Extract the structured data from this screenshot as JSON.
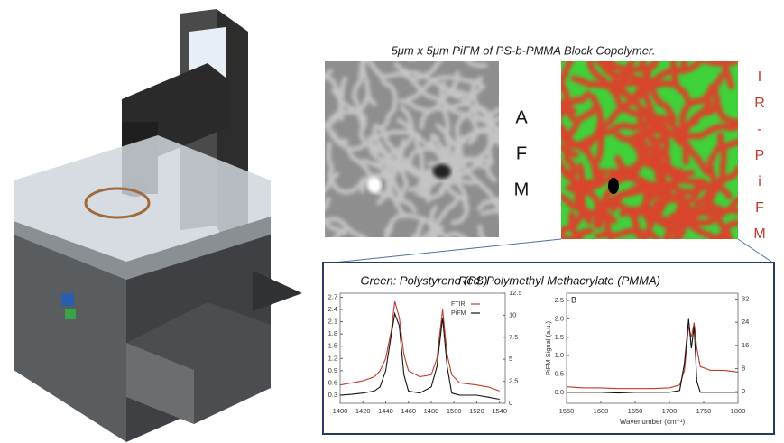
{
  "figure": {
    "title": "5μm x 5μm PiFM of PS-b-PMMA Block Copolymer.",
    "afm_label": [
      "A",
      "F",
      "M"
    ],
    "pifm_label": [
      "I",
      "R",
      "-",
      "P",
      "i",
      "F",
      "M"
    ]
  },
  "chart_data": [
    {
      "type": "line",
      "title": "Green: Polystyrene (PS)",
      "x": [
        1400,
        1410,
        1420,
        1430,
        1435,
        1440,
        1445,
        1448,
        1452,
        1456,
        1460,
        1470,
        1480,
        1485,
        1490,
        1494,
        1498,
        1505,
        1520,
        1530,
        1540
      ],
      "series": [
        {
          "name": "FTIR",
          "color": "#c0392b",
          "values": [
            0.55,
            0.6,
            0.65,
            0.75,
            0.9,
            1.2,
            1.9,
            2.6,
            2.2,
            1.3,
            0.9,
            0.75,
            0.8,
            1.2,
            2.4,
            1.3,
            0.8,
            0.6,
            0.55,
            0.5,
            0.4
          ]
        },
        {
          "name": "PiFM",
          "color": "#111111",
          "values": [
            0.3,
            0.32,
            0.35,
            0.4,
            0.5,
            0.9,
            1.8,
            2.3,
            2.0,
            0.8,
            0.4,
            0.35,
            0.5,
            1.0,
            2.2,
            1.0,
            0.35,
            0.3,
            0.3,
            0.25,
            0.2
          ]
        }
      ],
      "xlim": [
        1400,
        1545
      ],
      "xticks": [
        1400,
        1420,
        1440,
        1460,
        1480,
        1500,
        1520,
        1540
      ],
      "ylim": [
        0.1,
        2.8
      ],
      "yticks": [
        0.3,
        0.6,
        0.9,
        1.2,
        1.5,
        1.8,
        2.1,
        2.4,
        2.7
      ],
      "y2lim": [
        0,
        12.5
      ],
      "y2ticks": [
        0,
        2.5,
        5,
        7.5,
        10,
        12.5
      ]
    },
    {
      "type": "line",
      "title": "Red: Polymethyl Methacrylate (PMMA)",
      "annotation": "B",
      "xlabel": "Wavenumber (cm⁻¹)",
      "ylabel": "PiFM Signal (a.u.)",
      "x": [
        1550,
        1575,
        1600,
        1625,
        1650,
        1675,
        1700,
        1715,
        1722,
        1728,
        1732,
        1736,
        1740,
        1745,
        1760,
        1780,
        1800
      ],
      "series": [
        {
          "name": "FTIR",
          "color": "#c0392b",
          "values": [
            0.15,
            0.12,
            0.12,
            0.1,
            0.1,
            0.1,
            0.12,
            0.2,
            0.6,
            1.8,
            1.5,
            1.9,
            1.2,
            0.7,
            0.6,
            0.6,
            0.55
          ]
        },
        {
          "name": "PiFM",
          "color": "#111111",
          "values": [
            0.0,
            0.0,
            0.0,
            -0.02,
            0.0,
            0.0,
            0.0,
            0.05,
            0.8,
            2.0,
            1.2,
            1.8,
            0.3,
            0.0,
            0.0,
            0.0,
            0.0
          ]
        }
      ],
      "xlim": [
        1550,
        1800
      ],
      "xticks": [
        1550,
        1600,
        1650,
        1700,
        1750,
        1800
      ],
      "ylim": [
        -0.3,
        2.7
      ],
      "yticks": [
        {
          "value": 0,
          "label": "0.0"
        },
        0.5,
        {
          "value": 1,
          "label": "1.0"
        },
        1.5,
        {
          "value": 2,
          "label": "2.0"
        },
        2.5
      ],
      "y2lim": [
        -4,
        34
      ],
      "y2ticks": [
        0,
        8,
        16,
        24,
        32
      ]
    }
  ]
}
